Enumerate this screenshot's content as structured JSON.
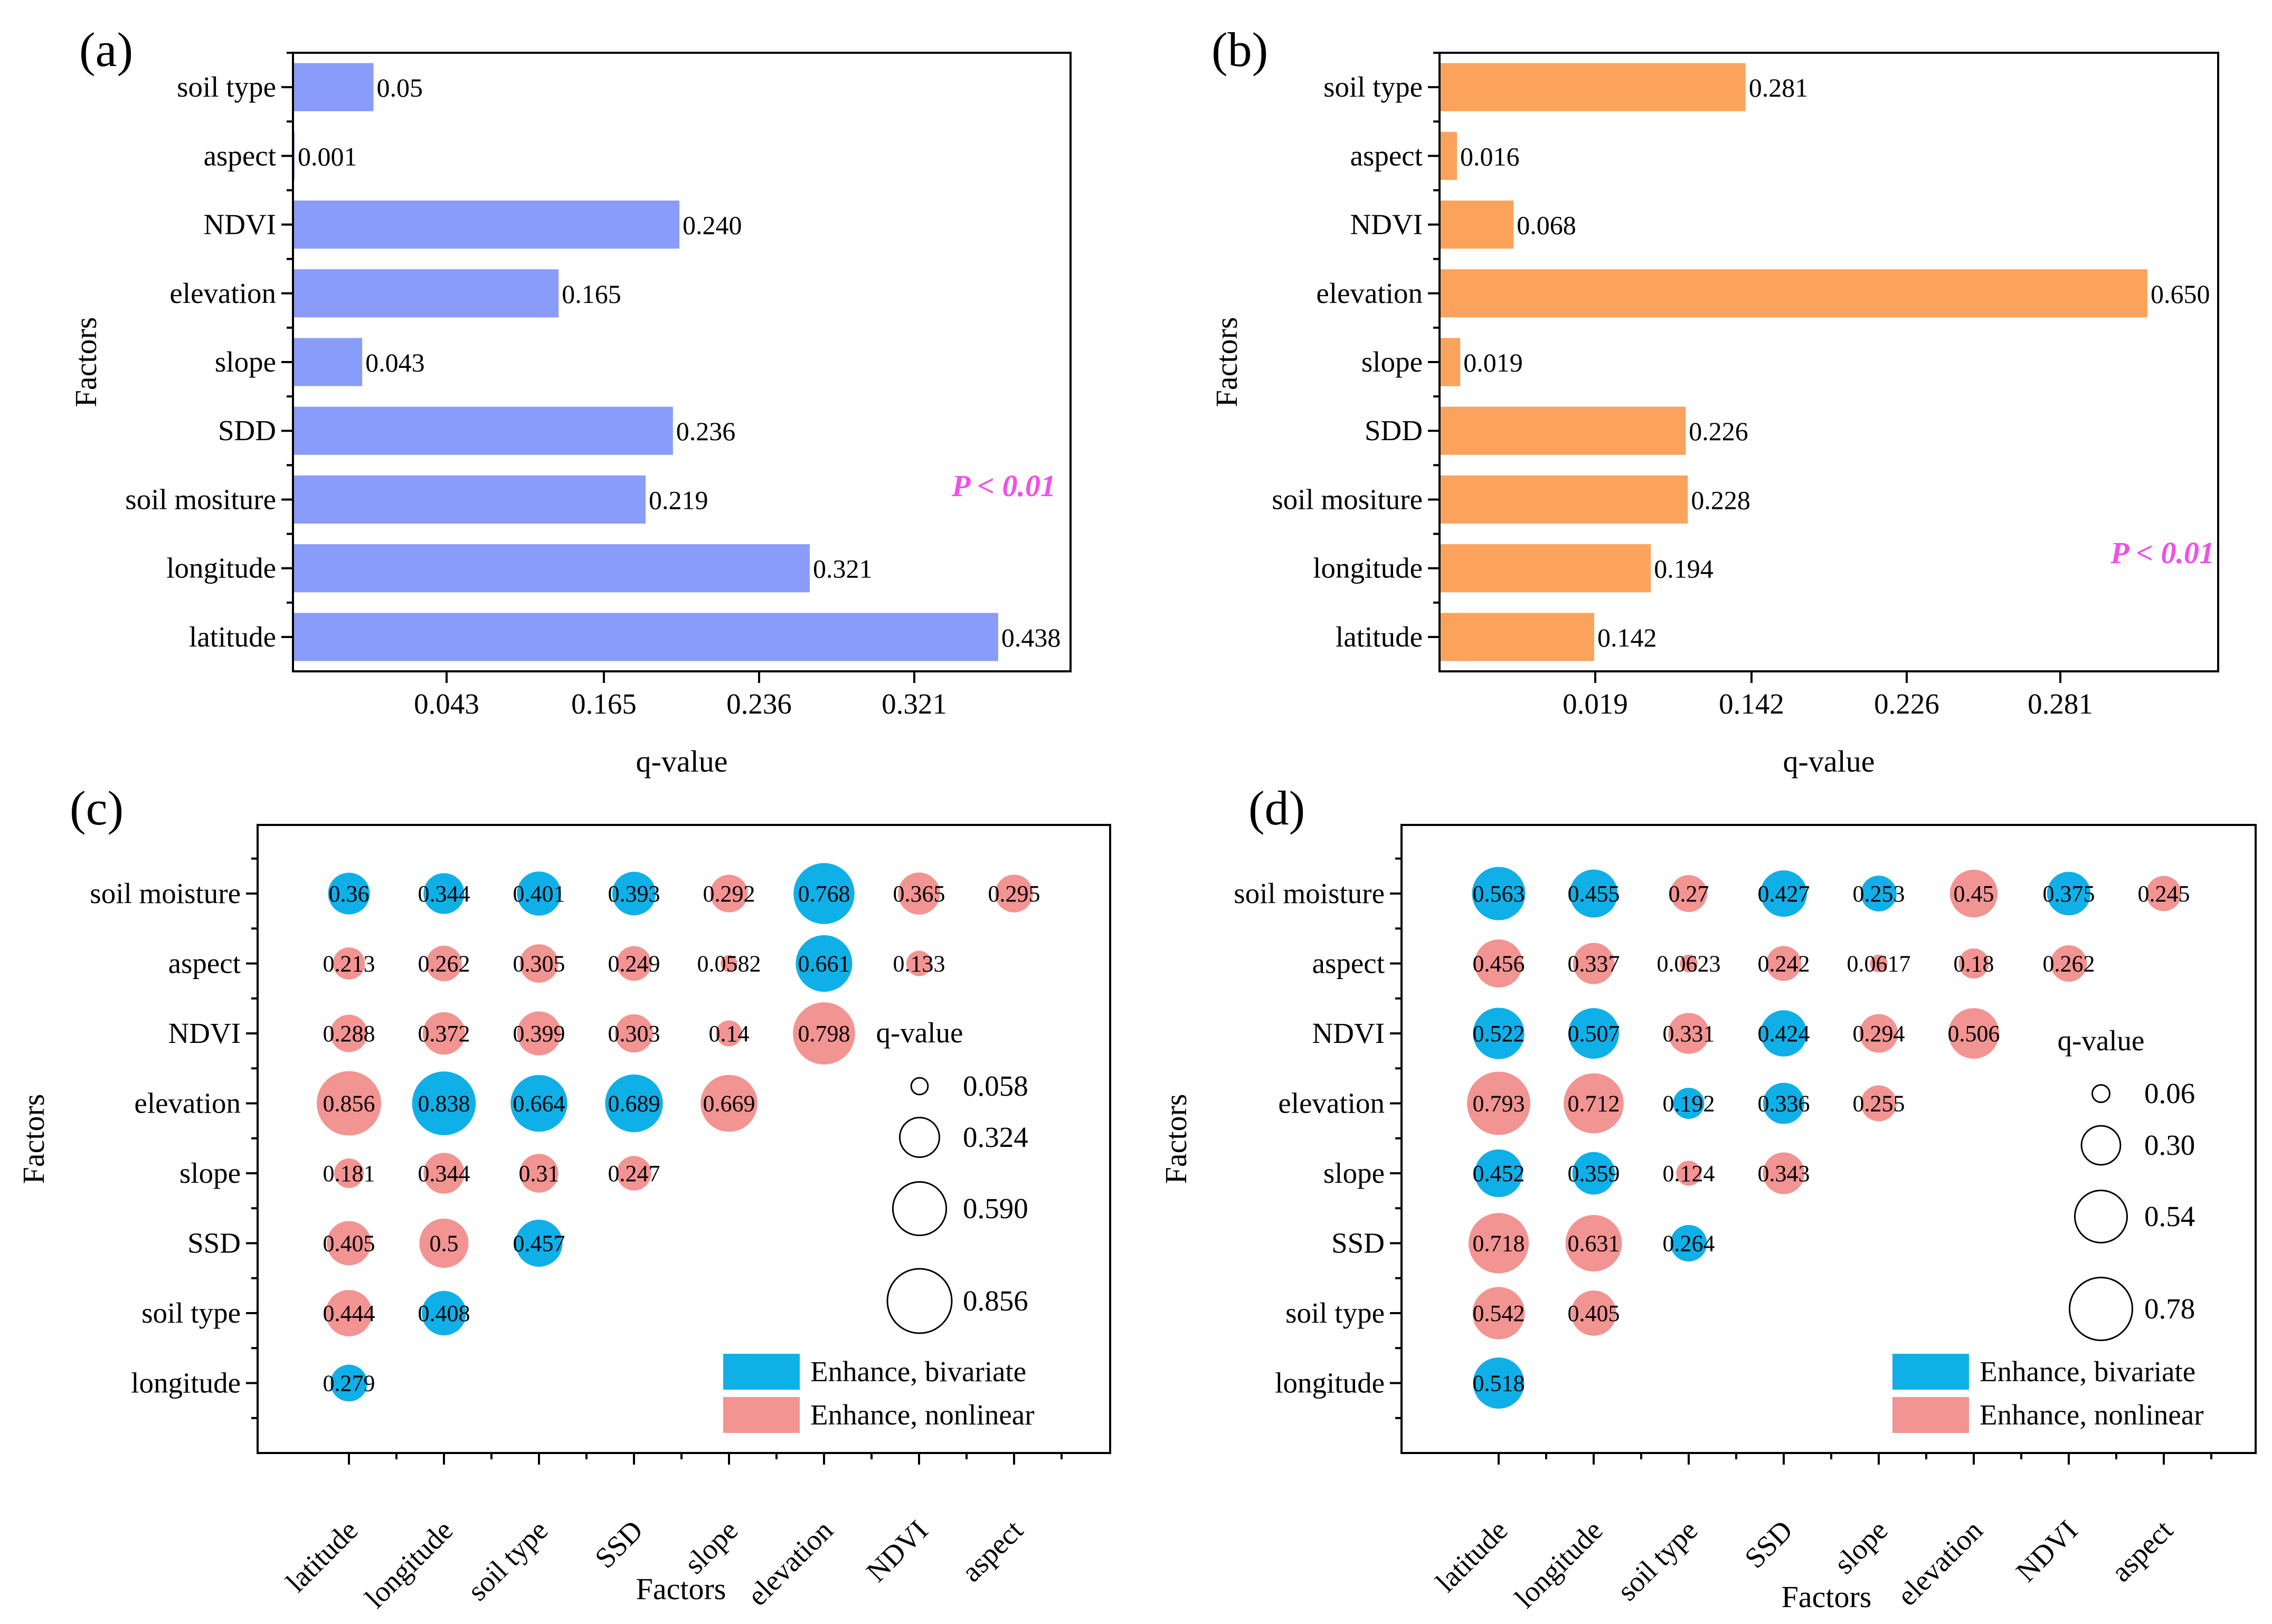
{
  "colors": {
    "bar_a": "#8a9cfa",
    "bar_b": "#fba35d",
    "bivariate": "#0fb0e8",
    "nonlinear": "#f29492",
    "significance": "#f050e8"
  },
  "chart_data": [
    {
      "panel": "(a)",
      "type": "bar",
      "orientation": "horizontal",
      "categories": [
        "soil type",
        "aspect",
        "NDVI",
        "elevation",
        "slope",
        "SDD",
        "soil mositure",
        "longitude",
        "latitude"
      ],
      "values": [
        0.05,
        0.001,
        0.24,
        0.165,
        0.043,
        0.236,
        0.219,
        0.321,
        0.438
      ],
      "value_labels": [
        "0.05",
        "0.001",
        "0.240",
        "0.165",
        "0.043",
        "0.236",
        "0.219",
        "0.321",
        "0.438"
      ],
      "xticks": [
        "0.043",
        "0.165",
        "0.236",
        "0.321"
      ],
      "xlabel": "q-value",
      "ylabel": "Factors",
      "annotation": "P < 0.01"
    },
    {
      "panel": "(b)",
      "type": "bar",
      "orientation": "horizontal",
      "categories": [
        "soil type",
        "aspect",
        "NDVI",
        "elevation",
        "slope",
        "SDD",
        "soil mositure",
        "longitude",
        "latitude"
      ],
      "values": [
        0.281,
        0.016,
        0.068,
        0.65,
        0.019,
        0.226,
        0.228,
        0.194,
        0.142
      ],
      "value_labels": [
        "0.281",
        "0.016",
        "0.068",
        "0.650",
        "0.019",
        "0.226",
        "0.228",
        "0.194",
        "0.142"
      ],
      "xticks": [
        "0.019",
        "0.142",
        "0.226",
        "0.281"
      ],
      "xlabel": "q-value",
      "ylabel": "Factors",
      "annotation": "P < 0.01"
    },
    {
      "panel": "(c)",
      "type": "scatter",
      "subtype": "bubble-matrix",
      "x_categories": [
        "latitude",
        "longitude",
        "soil type",
        "SSD",
        "slope",
        "elevation",
        "NDVI",
        "aspect"
      ],
      "y_categories": [
        "soil moisture",
        "aspect",
        "NDVI",
        "elevation",
        "slope",
        "SSD",
        "soil type",
        "longitude"
      ],
      "xlabel": "Factors",
      "ylabel": "Factors",
      "size_legend_title": "q-value",
      "size_legend": [
        "0.058",
        "0.324",
        "0.590",
        "0.856"
      ],
      "color_legend": [
        "Enhance, bivariate",
        "Enhance, nonlinear"
      ],
      "points": [
        {
          "x": "latitude",
          "y": "soil moisture",
          "q": 0.36,
          "label": "0.36",
          "type": "bivariate"
        },
        {
          "x": "longitude",
          "y": "soil moisture",
          "q": 0.344,
          "label": "0.344",
          "type": "bivariate"
        },
        {
          "x": "soil type",
          "y": "soil moisture",
          "q": 0.401,
          "label": "0.401",
          "type": "bivariate"
        },
        {
          "x": "SSD",
          "y": "soil moisture",
          "q": 0.393,
          "label": "0.393",
          "type": "bivariate"
        },
        {
          "x": "slope",
          "y": "soil moisture",
          "q": 0.292,
          "label": "0.292",
          "type": "nonlinear"
        },
        {
          "x": "elevation",
          "y": "soil moisture",
          "q": 0.768,
          "label": "0.768",
          "type": "bivariate"
        },
        {
          "x": "NDVI",
          "y": "soil moisture",
          "q": 0.365,
          "label": "0.365",
          "type": "nonlinear"
        },
        {
          "x": "aspect",
          "y": "soil moisture",
          "q": 0.295,
          "label": "0.295",
          "type": "nonlinear"
        },
        {
          "x": "latitude",
          "y": "aspect",
          "q": 0.213,
          "label": "0.213",
          "type": "nonlinear"
        },
        {
          "x": "longitude",
          "y": "aspect",
          "q": 0.262,
          "label": "0.262",
          "type": "nonlinear"
        },
        {
          "x": "soil type",
          "y": "aspect",
          "q": 0.305,
          "label": "0.305",
          "type": "nonlinear"
        },
        {
          "x": "SSD",
          "y": "aspect",
          "q": 0.249,
          "label": "0.249",
          "type": "nonlinear"
        },
        {
          "x": "slope",
          "y": "aspect",
          "q": 0.0582,
          "label": "0.0582",
          "type": "nonlinear"
        },
        {
          "x": "elevation",
          "y": "aspect",
          "q": 0.661,
          "label": "0.661",
          "type": "bivariate"
        },
        {
          "x": "NDVI",
          "y": "aspect",
          "q": 0.133,
          "label": "0.133",
          "type": "nonlinear"
        },
        {
          "x": "latitude",
          "y": "NDVI",
          "q": 0.288,
          "label": "0.288",
          "type": "nonlinear"
        },
        {
          "x": "longitude",
          "y": "NDVI",
          "q": 0.372,
          "label": "0.372",
          "type": "nonlinear"
        },
        {
          "x": "soil type",
          "y": "NDVI",
          "q": 0.399,
          "label": "0.399",
          "type": "nonlinear"
        },
        {
          "x": "SSD",
          "y": "NDVI",
          "q": 0.303,
          "label": "0.303",
          "type": "nonlinear"
        },
        {
          "x": "slope",
          "y": "NDVI",
          "q": 0.14,
          "label": "0.14",
          "type": "nonlinear"
        },
        {
          "x": "elevation",
          "y": "NDVI",
          "q": 0.798,
          "label": "0.798",
          "type": "nonlinear"
        },
        {
          "x": "latitude",
          "y": "elevation",
          "q": 0.856,
          "label": "0.856",
          "type": "nonlinear"
        },
        {
          "x": "longitude",
          "y": "elevation",
          "q": 0.838,
          "label": "0.838",
          "type": "bivariate"
        },
        {
          "x": "soil type",
          "y": "elevation",
          "q": 0.664,
          "label": "0.664",
          "type": "bivariate"
        },
        {
          "x": "SSD",
          "y": "elevation",
          "q": 0.689,
          "label": "0.689",
          "type": "bivariate"
        },
        {
          "x": "slope",
          "y": "elevation",
          "q": 0.669,
          "label": "0.669",
          "type": "nonlinear"
        },
        {
          "x": "latitude",
          "y": "slope",
          "q": 0.181,
          "label": "0.181",
          "type": "nonlinear"
        },
        {
          "x": "longitude",
          "y": "slope",
          "q": 0.344,
          "label": "0.344",
          "type": "nonlinear"
        },
        {
          "x": "soil type",
          "y": "slope",
          "q": 0.31,
          "label": "0.31",
          "type": "nonlinear"
        },
        {
          "x": "SSD",
          "y": "slope",
          "q": 0.247,
          "label": "0.247",
          "type": "nonlinear"
        },
        {
          "x": "latitude",
          "y": "SSD",
          "q": 0.405,
          "label": "0.405",
          "type": "nonlinear"
        },
        {
          "x": "longitude",
          "y": "SSD",
          "q": 0.5,
          "label": "0.5",
          "type": "nonlinear"
        },
        {
          "x": "soil type",
          "y": "SSD",
          "q": 0.457,
          "label": "0.457",
          "type": "bivariate"
        },
        {
          "x": "latitude",
          "y": "soil type",
          "q": 0.444,
          "label": "0.444",
          "type": "nonlinear"
        },
        {
          "x": "longitude",
          "y": "soil type",
          "q": 0.408,
          "label": "0.408",
          "type": "bivariate"
        },
        {
          "x": "latitude",
          "y": "longitude",
          "q": 0.279,
          "label": "0.279",
          "type": "bivariate"
        }
      ]
    },
    {
      "panel": "(d)",
      "type": "scatter",
      "subtype": "bubble-matrix",
      "x_categories": [
        "latitude",
        "longitude",
        "soil type",
        "SSD",
        "slope",
        "elevation",
        "NDVI",
        "aspect"
      ],
      "y_categories": [
        "soil moisture",
        "aspect",
        "NDVI",
        "elevation",
        "slope",
        "SSD",
        "soil type",
        "longitude"
      ],
      "xlabel": "Factors",
      "ylabel": "Factors",
      "size_legend_title": "q-value",
      "size_legend": [
        "0.06",
        "0.30",
        "0.54",
        "0.78"
      ],
      "color_legend": [
        "Enhance, bivariate",
        "Enhance, nonlinear"
      ],
      "points": [
        {
          "x": "latitude",
          "y": "soil moisture",
          "q": 0.563,
          "label": "0.563",
          "type": "bivariate"
        },
        {
          "x": "longitude",
          "y": "soil moisture",
          "q": 0.455,
          "label": "0.455",
          "type": "bivariate"
        },
        {
          "x": "soil type",
          "y": "soil moisture",
          "q": 0.27,
          "label": "0.27",
          "type": "nonlinear"
        },
        {
          "x": "SSD",
          "y": "soil moisture",
          "q": 0.427,
          "label": "0.427",
          "type": "bivariate"
        },
        {
          "x": "slope",
          "y": "soil moisture",
          "q": 0.253,
          "label": "0.253",
          "type": "bivariate"
        },
        {
          "x": "elevation",
          "y": "soil moisture",
          "q": 0.45,
          "label": "0.45",
          "type": "nonlinear"
        },
        {
          "x": "NDVI",
          "y": "soil moisture",
          "q": 0.375,
          "label": "0.375",
          "type": "bivariate"
        },
        {
          "x": "aspect",
          "y": "soil moisture",
          "q": 0.245,
          "label": "0.245",
          "type": "nonlinear"
        },
        {
          "x": "latitude",
          "y": "aspect",
          "q": 0.456,
          "label": "0.456",
          "type": "nonlinear"
        },
        {
          "x": "longitude",
          "y": "aspect",
          "q": 0.337,
          "label": "0.337",
          "type": "nonlinear"
        },
        {
          "x": "soil type",
          "y": "aspect",
          "q": 0.0623,
          "label": "0.0623",
          "type": "nonlinear"
        },
        {
          "x": "SSD",
          "y": "aspect",
          "q": 0.242,
          "label": "0.242",
          "type": "nonlinear"
        },
        {
          "x": "slope",
          "y": "aspect",
          "q": 0.0617,
          "label": "0.0617",
          "type": "nonlinear"
        },
        {
          "x": "elevation",
          "y": "aspect",
          "q": 0.18,
          "label": "0.18",
          "type": "nonlinear"
        },
        {
          "x": "NDVI",
          "y": "aspect",
          "q": 0.262,
          "label": "0.262",
          "type": "nonlinear"
        },
        {
          "x": "latitude",
          "y": "NDVI",
          "q": 0.522,
          "label": "0.522",
          "type": "bivariate"
        },
        {
          "x": "longitude",
          "y": "NDVI",
          "q": 0.507,
          "label": "0.507",
          "type": "bivariate"
        },
        {
          "x": "soil type",
          "y": "NDVI",
          "q": 0.331,
          "label": "0.331",
          "type": "nonlinear"
        },
        {
          "x": "SSD",
          "y": "NDVI",
          "q": 0.424,
          "label": "0.424",
          "type": "bivariate"
        },
        {
          "x": "slope",
          "y": "NDVI",
          "q": 0.294,
          "label": "0.294",
          "type": "nonlinear"
        },
        {
          "x": "elevation",
          "y": "NDVI",
          "q": 0.506,
          "label": "0.506",
          "type": "nonlinear"
        },
        {
          "x": "latitude",
          "y": "elevation",
          "q": 0.793,
          "label": "0.793",
          "type": "nonlinear"
        },
        {
          "x": "longitude",
          "y": "elevation",
          "q": 0.712,
          "label": "0.712",
          "type": "nonlinear"
        },
        {
          "x": "soil type",
          "y": "elevation",
          "q": 0.192,
          "label": "0.192",
          "type": "bivariate"
        },
        {
          "x": "SSD",
          "y": "elevation",
          "q": 0.336,
          "label": "0.336",
          "type": "bivariate"
        },
        {
          "x": "slope",
          "y": "elevation",
          "q": 0.255,
          "label": "0.255",
          "type": "nonlinear"
        },
        {
          "x": "latitude",
          "y": "slope",
          "q": 0.452,
          "label": "0.452",
          "type": "bivariate"
        },
        {
          "x": "longitude",
          "y": "slope",
          "q": 0.359,
          "label": "0.359",
          "type": "bivariate"
        },
        {
          "x": "soil type",
          "y": "slope",
          "q": 0.124,
          "label": "0.124",
          "type": "nonlinear"
        },
        {
          "x": "SSD",
          "y": "slope",
          "q": 0.343,
          "label": "0.343",
          "type": "nonlinear"
        },
        {
          "x": "latitude",
          "y": "SSD",
          "q": 0.718,
          "label": "0.718",
          "type": "nonlinear"
        },
        {
          "x": "longitude",
          "y": "SSD",
          "q": 0.631,
          "label": "0.631",
          "type": "nonlinear"
        },
        {
          "x": "soil type",
          "y": "SSD",
          "q": 0.264,
          "label": "0.264",
          "type": "bivariate"
        },
        {
          "x": "latitude",
          "y": "soil type",
          "q": 0.542,
          "label": "0.542",
          "type": "nonlinear"
        },
        {
          "x": "longitude",
          "y": "soil type",
          "q": 0.405,
          "label": "0.405",
          "type": "nonlinear"
        },
        {
          "x": "latitude",
          "y": "longitude",
          "q": 0.518,
          "label": "0.518",
          "type": "bivariate"
        }
      ]
    }
  ]
}
